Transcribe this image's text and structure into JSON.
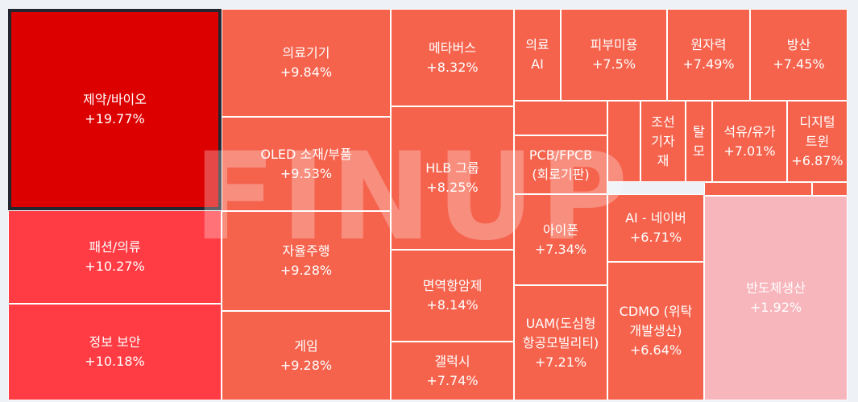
{
  "chart_data": {
    "type": "treemap",
    "watermark": "FINUP",
    "items": [
      {
        "name": "제약/바이오",
        "value": "+19.77%",
        "color": "#dd0000",
        "selected": true
      },
      {
        "name": "패션/의류",
        "value": "+10.27%",
        "color": "#ff3c44"
      },
      {
        "name": "정보 보안",
        "value": "+10.18%",
        "color": "#ff3c44"
      },
      {
        "name": "의료기기",
        "value": "+9.84%",
        "color": "#f5634d"
      },
      {
        "name": "OLED 소재/부품",
        "value": "+9.53%",
        "color": "#f5634d"
      },
      {
        "name": "자율주행",
        "value": "+9.28%",
        "color": "#f5634d"
      },
      {
        "name": "게임",
        "value": "+9.28%",
        "color": "#f5634d"
      },
      {
        "name": "메타버스",
        "value": "+8.32%",
        "color": "#f5634d"
      },
      {
        "name": "HLB 그룹",
        "value": "+8.25%",
        "color": "#f5634d"
      },
      {
        "name": "면역항암제",
        "value": "+8.14%",
        "color": "#f5634d"
      },
      {
        "name": "갤럭시",
        "value": "+7.74%",
        "color": "#f5634d"
      },
      {
        "name": "의료\nAI",
        "value": "",
        "color": "#f5634d"
      },
      {
        "name": "피부미용",
        "value": "+7.5%",
        "color": "#f5634d"
      },
      {
        "name": "원자력",
        "value": "+7.49%",
        "color": "#f5634d"
      },
      {
        "name": "방산",
        "value": "+7.45%",
        "color": "#f5634d"
      },
      {
        "name": "",
        "value": "",
        "color": "#f5634d"
      },
      {
        "name": "PCB/FPCB\n(회로기판)",
        "value": "",
        "color": "#f5634d"
      },
      {
        "name": "",
        "value": "",
        "color": "#f5634d"
      },
      {
        "name": "조선\n기자\n재",
        "value": "",
        "color": "#f5634d"
      },
      {
        "name": "탈\n모",
        "value": "",
        "color": "#f5634d"
      },
      {
        "name": "석유/유가",
        "value": "+7.01%",
        "color": "#f5634d"
      },
      {
        "name": "디지털\n트윈",
        "value": "+6.87%",
        "color": "#f5634d"
      },
      {
        "name": "",
        "value": "",
        "color": "#f5634d"
      },
      {
        "name": "",
        "value": "",
        "color": "#f5634d"
      },
      {
        "name": "아이폰",
        "value": "+7.34%",
        "color": "#f5634d"
      },
      {
        "name": "UAM(도심형\n항공모빌리티)",
        "value": "+7.21%",
        "color": "#f5634d"
      },
      {
        "name": "AI - 네이버",
        "value": "+6.71%",
        "color": "#f5634d"
      },
      {
        "name": "CDMO (위탁\n개발생산)",
        "value": "+6.64%",
        "color": "#f5634d"
      },
      {
        "name": "반도체생산",
        "value": "+1.92%",
        "color": "#f7b5bc"
      }
    ]
  }
}
